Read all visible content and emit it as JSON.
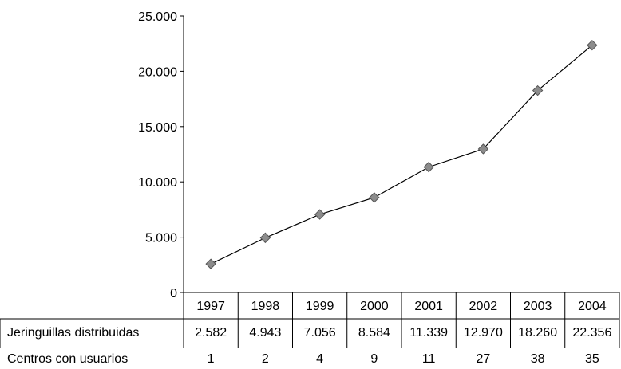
{
  "chart_data": {
    "type": "line",
    "categories": [
      "1997",
      "1998",
      "1999",
      "2000",
      "2001",
      "2002",
      "2003",
      "2004"
    ],
    "series": [
      {
        "name": "Jeringuillas distribuidas",
        "values": [
          2582,
          4943,
          7056,
          8584,
          11339,
          12970,
          18260,
          22356
        ]
      }
    ],
    "ylim": [
      0,
      25000
    ],
    "yticks": [
      0,
      5000,
      10000,
      15000,
      20000,
      25000
    ],
    "ytick_labels": [
      "0",
      "5.000",
      "10.000",
      "15.000",
      "20.000",
      "25.000"
    ],
    "grid": false,
    "legend": "none",
    "data_table": {
      "rows": [
        {
          "label": "Jeringuillas distribuidas",
          "values": [
            "2.582",
            "4.943",
            "7.056",
            "8.584",
            "11.339",
            "12.970",
            "18.260",
            "22.356"
          ]
        },
        {
          "label": "Centros con usuarios",
          "values": [
            "1",
            "2",
            "4",
            "9",
            "11",
            "27",
            "38",
            "35"
          ]
        }
      ]
    },
    "colors": {
      "line": "#000000",
      "marker_fill": "#8c8c8c",
      "marker_stroke": "#555555"
    }
  }
}
